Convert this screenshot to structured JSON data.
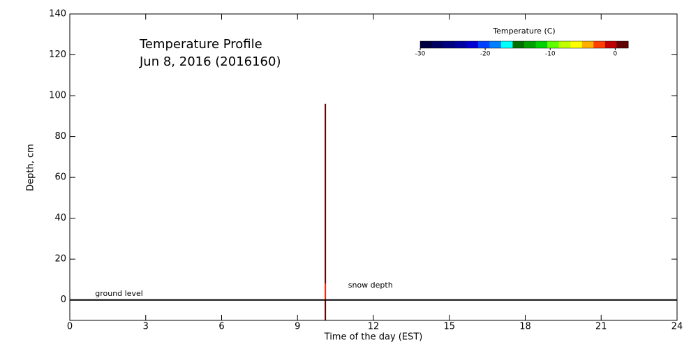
{
  "chart_data": {
    "type": "profile",
    "title": "Temperature Profile",
    "subtitle": "Jun  8, 2016 (2016160)",
    "x_label": "Time of the day (EST)",
    "y_label": "Depth, cm",
    "xlim": [
      0,
      24
    ],
    "xticks": [
      0,
      3,
      6,
      9,
      12,
      15,
      18,
      21,
      24
    ],
    "ylim": [
      -10,
      140
    ],
    "yticks": [
      0,
      20,
      40,
      60,
      80,
      100,
      120,
      140
    ],
    "ground_level": 0,
    "annotations": [
      {
        "text": "ground level",
        "x": 1,
        "y": 3
      },
      {
        "text": "snow depth",
        "x": 11,
        "y": 7
      }
    ],
    "profile": {
      "x": 10.1,
      "segments": [
        {
          "from": -10,
          "to": 0,
          "color": "#600000"
        },
        {
          "from": 0,
          "to": 8,
          "color": "#ff2000"
        },
        {
          "from": 8,
          "to": 96,
          "color": "#600000"
        }
      ]
    },
    "colorbar": {
      "title": "Temperature (C)",
      "lim": [
        -30,
        2
      ],
      "ticks": [
        -30,
        -20,
        -10,
        0
      ],
      "colors": [
        "#000040",
        "#000060",
        "#000080",
        "#0000a0",
        "#0000d0",
        "#0040ff",
        "#0080ff",
        "#00ffff",
        "#007000",
        "#00a000",
        "#00d000",
        "#60ff00",
        "#c0ff00",
        "#ffff00",
        "#ffb000",
        "#ff4000",
        "#c00000",
        "#600000"
      ]
    }
  }
}
